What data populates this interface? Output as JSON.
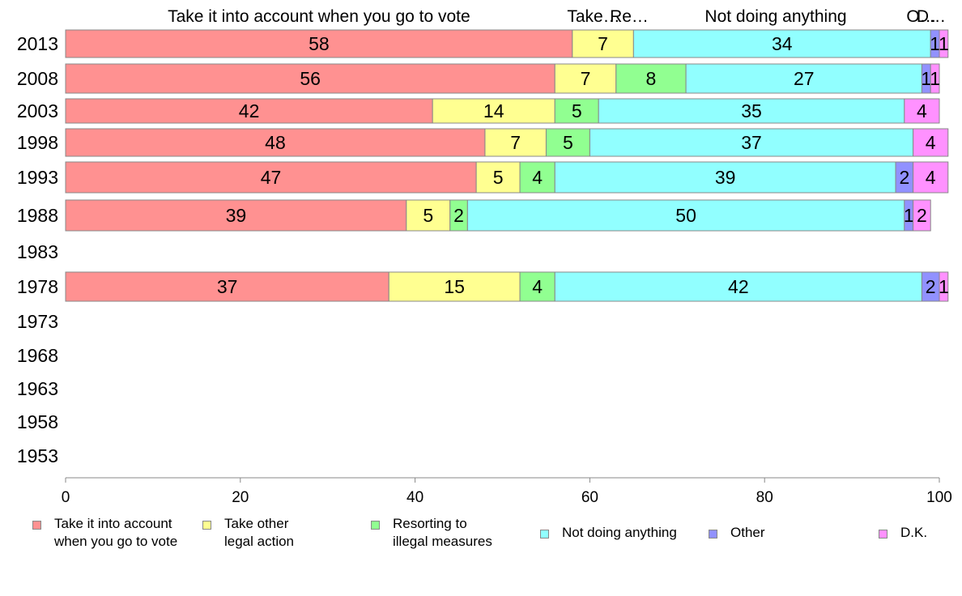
{
  "chart_data": {
    "type": "bar",
    "orientation": "horizontal",
    "stacked": true,
    "categories": [
      "2013",
      "2008",
      "2003",
      "1998",
      "1993",
      "1988",
      "1983",
      "1978",
      "1973",
      "1968",
      "1963",
      "1958",
      "1953"
    ],
    "series": [
      {
        "name": "Take it into account when you go to vote",
        "color": "#ff9191",
        "values": [
          58,
          56,
          42,
          48,
          47,
          39,
          null,
          37,
          null,
          null,
          null,
          null,
          null
        ]
      },
      {
        "name": "Take other legal action",
        "color": "#ffff91",
        "values": [
          7,
          7,
          14,
          7,
          5,
          5,
          null,
          15,
          null,
          null,
          null,
          null,
          null
        ]
      },
      {
        "name": "Resorting to illegal measures",
        "color": "#91ff91",
        "values": [
          0,
          8,
          5,
          5,
          4,
          2,
          null,
          4,
          null,
          null,
          null,
          null,
          null
        ]
      },
      {
        "name": "Not doing anything",
        "color": "#91ffff",
        "values": [
          34,
          27,
          35,
          37,
          39,
          50,
          null,
          42,
          null,
          null,
          null,
          null,
          null
        ]
      },
      {
        "name": "Other",
        "color": "#9191ff",
        "values": [
          1,
          1,
          0,
          0,
          2,
          1,
          null,
          2,
          null,
          null,
          null,
          null,
          null
        ]
      },
      {
        "name": "D.K.",
        "color": "#ff91ff",
        "values": [
          1,
          1,
          4,
          4,
          4,
          2,
          null,
          1,
          null,
          null,
          null,
          null,
          null
        ]
      }
    ],
    "top_labels": [
      "Take it into account when you go to vote",
      "Take…",
      "Re…",
      "Not doing anything",
      "O…",
      "D…"
    ],
    "xlim": [
      0,
      100
    ],
    "xticks": [
      0,
      20,
      40,
      60,
      80,
      100
    ],
    "xlabel": "",
    "ylabel": "",
    "grid": false,
    "legend_position": "bottom"
  },
  "legend": [
    {
      "label": "Take it into account\nwhen you go to vote",
      "color": "#ff9191"
    },
    {
      "label": "Take other\nlegal action",
      "color": "#ffff91"
    },
    {
      "label": "Resorting to\nillegal measures",
      "color": "#91ff91"
    },
    {
      "label": "Not doing anything",
      "color": "#91ffff"
    },
    {
      "label": "Other",
      "color": "#9191ff"
    },
    {
      "label": "D.K.",
      "color": "#ff91ff"
    }
  ]
}
